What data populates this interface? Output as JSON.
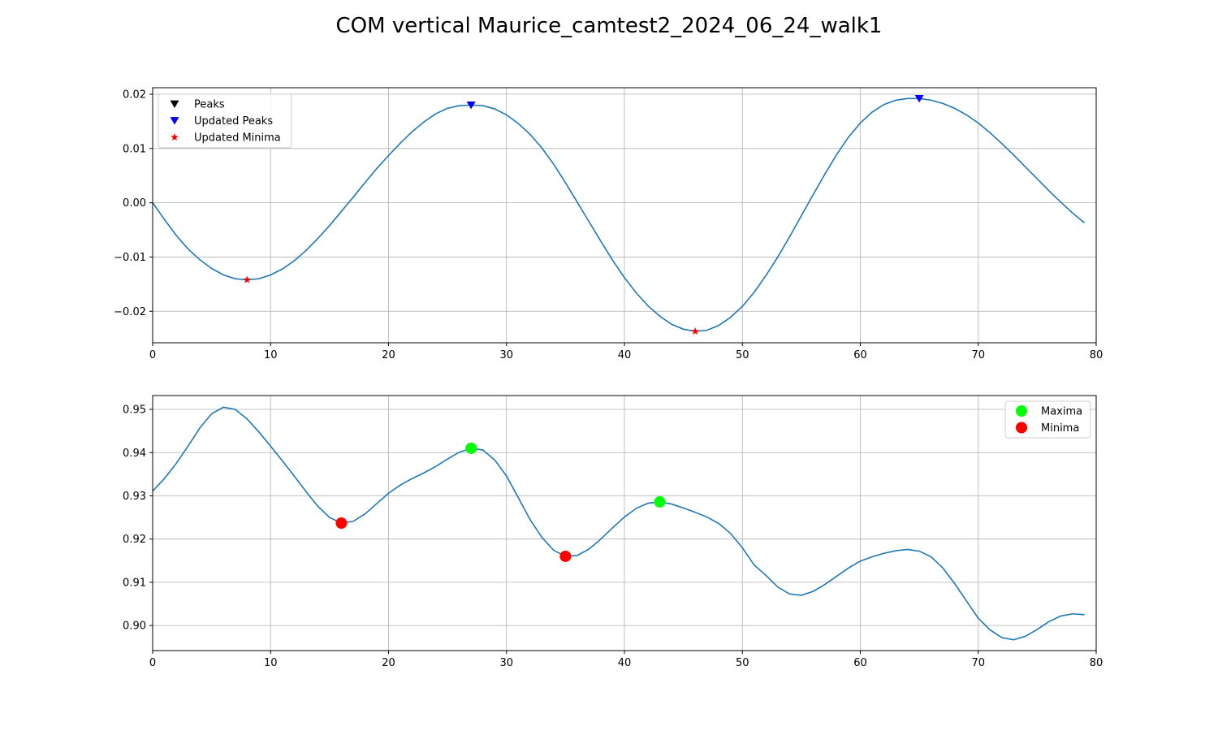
{
  "figure": {
    "title": "COM vertical Maurice_camtest2_2024_06_24_walk1"
  },
  "chart_data": [
    {
      "type": "line",
      "title": "",
      "xlabel": "",
      "ylabel": "",
      "xlim": [
        0,
        80
      ],
      "ylim": [
        -0.0258,
        0.0212
      ],
      "xticks": [
        0,
        10,
        20,
        30,
        40,
        50,
        60,
        70,
        80
      ],
      "yticks": [
        -0.02,
        -0.01,
        0.0,
        0.01,
        0.02
      ],
      "ytick_labels": [
        "−0.02",
        "−0.01",
        "0.00",
        "0.01",
        "0.02"
      ],
      "grid": true,
      "legend_position": "upper-left",
      "line_color": "#1f77b4",
      "series": [
        {
          "x": [
            0,
            1,
            2,
            3,
            4,
            5,
            6,
            7,
            8,
            9,
            10,
            11,
            12,
            13,
            14,
            15,
            16,
            17,
            18,
            19,
            20,
            21,
            22,
            23,
            24,
            25,
            26,
            27,
            28,
            29,
            30,
            31,
            32,
            33,
            34,
            35,
            36,
            37,
            38,
            39,
            40,
            41,
            42,
            43,
            44,
            45,
            46,
            47,
            48,
            49,
            50,
            51,
            52,
            53,
            54,
            55,
            56,
            57,
            58,
            59,
            60,
            61,
            62,
            63,
            64,
            65,
            66,
            67,
            68,
            69,
            70,
            71,
            72,
            73,
            74,
            75,
            76,
            77,
            78,
            79
          ],
          "y": [
            0.0,
            -0.0031,
            -0.006,
            -0.0085,
            -0.0105,
            -0.0121,
            -0.0133,
            -0.014,
            -0.0142,
            -0.014,
            -0.0133,
            -0.0122,
            -0.0107,
            -0.0088,
            -0.0066,
            -0.0042,
            -0.0016,
            0.001,
            0.0037,
            0.0063,
            0.0087,
            0.011,
            0.0131,
            0.0149,
            0.0164,
            0.0174,
            0.0179,
            0.018,
            0.0179,
            0.0173,
            0.0162,
            0.0146,
            0.0126,
            0.0101,
            0.0071,
            0.0037,
            0.0001,
            -0.0035,
            -0.0071,
            -0.0106,
            -0.0138,
            -0.0166,
            -0.019,
            -0.0209,
            -0.0224,
            -0.0233,
            -0.0237,
            -0.0235,
            -0.0226,
            -0.0211,
            -0.0191,
            -0.0165,
            -0.0134,
            -0.01,
            -0.0063,
            -0.0024,
            0.0015,
            0.0053,
            0.0089,
            0.0121,
            0.0147,
            0.0167,
            0.0181,
            0.0189,
            0.0192,
            0.0192,
            0.0189,
            0.0183,
            0.0174,
            0.0162,
            0.0147,
            0.0129,
            0.0109,
            0.0088,
            0.0066,
            0.0044,
            0.0022,
            0.0001,
            -0.0019,
            -0.0037
          ]
        }
      ],
      "markers": [
        {
          "name": "Peaks",
          "color": "#000000",
          "shape": "triangle_down",
          "points": []
        },
        {
          "name": "Updated Peaks",
          "color": "#0000ff",
          "shape": "triangle_down",
          "points": [
            [
              27,
              0.018
            ],
            [
              65,
              0.0192
            ]
          ]
        },
        {
          "name": "Updated Minima",
          "color": "#ff0000",
          "shape": "star",
          "points": [
            [
              8,
              -0.0142
            ],
            [
              46,
              -0.0237
            ]
          ]
        }
      ]
    },
    {
      "type": "line",
      "title": "",
      "xlabel": "",
      "ylabel": "",
      "xlim": [
        0,
        80
      ],
      "ylim": [
        0.8942,
        0.9532
      ],
      "xticks": [
        0,
        10,
        20,
        30,
        40,
        50,
        60,
        70,
        80
      ],
      "yticks": [
        0.9,
        0.91,
        0.92,
        0.93,
        0.94,
        0.95
      ],
      "ytick_labels": [
        "0.90",
        "0.91",
        "0.92",
        "0.93",
        "0.94",
        "0.95"
      ],
      "grid": true,
      "legend_position": "upper-right",
      "line_color": "#1f77b4",
      "series": [
        {
          "x": [
            0,
            1,
            2,
            3,
            4,
            5,
            6,
            7,
            8,
            9,
            10,
            11,
            12,
            13,
            14,
            15,
            16,
            17,
            18,
            19,
            20,
            21,
            22,
            23,
            24,
            25,
            26,
            27,
            28,
            29,
            30,
            31,
            32,
            33,
            34,
            35,
            36,
            37,
            38,
            39,
            40,
            41,
            42,
            43,
            44,
            45,
            46,
            47,
            48,
            49,
            50,
            51,
            52,
            53,
            54,
            55,
            56,
            57,
            58,
            59,
            60,
            61,
            62,
            63,
            64,
            65,
            66,
            67,
            68,
            69,
            70,
            71,
            72,
            73,
            74,
            75,
            76,
            77,
            78,
            79
          ],
          "y": [
            0.9311,
            0.934,
            0.9375,
            0.9415,
            0.9457,
            0.949,
            0.9505,
            0.95,
            0.9478,
            0.9448,
            0.9415,
            0.9381,
            0.9346,
            0.931,
            0.9276,
            0.925,
            0.9237,
            0.9241,
            0.9258,
            0.9282,
            0.9306,
            0.9325,
            0.934,
            0.9353,
            0.9368,
            0.9385,
            0.9401,
            0.941,
            0.9406,
            0.9383,
            0.9346,
            0.9296,
            0.9245,
            0.9204,
            0.9174,
            0.916,
            0.9162,
            0.9177,
            0.92,
            0.9226,
            0.9251,
            0.9271,
            0.9283,
            0.9286,
            0.9281,
            0.9272,
            0.9262,
            0.9251,
            0.9236,
            0.9213,
            0.918,
            0.914,
            0.9116,
            0.9089,
            0.9073,
            0.907,
            0.9079,
            0.9095,
            0.9114,
            0.9133,
            0.9149,
            0.9159,
            0.9167,
            0.9173,
            0.9176,
            0.9172,
            0.9159,
            0.9133,
            0.9097,
            0.9057,
            0.9017,
            0.899,
            0.8972,
            0.8967,
            0.8975,
            0.8991,
            0.9009,
            0.9022,
            0.9027,
            0.9025
          ]
        }
      ],
      "markers": [
        {
          "name": "Maxima",
          "color": "#00ff00",
          "shape": "circle",
          "points": [
            [
              27,
              0.941
            ],
            [
              43,
              0.9286
            ]
          ]
        },
        {
          "name": "Minima",
          "color": "#ff0000",
          "shape": "circle",
          "points": [
            [
              16,
              0.9237
            ],
            [
              35,
              0.916
            ]
          ]
        }
      ]
    }
  ]
}
